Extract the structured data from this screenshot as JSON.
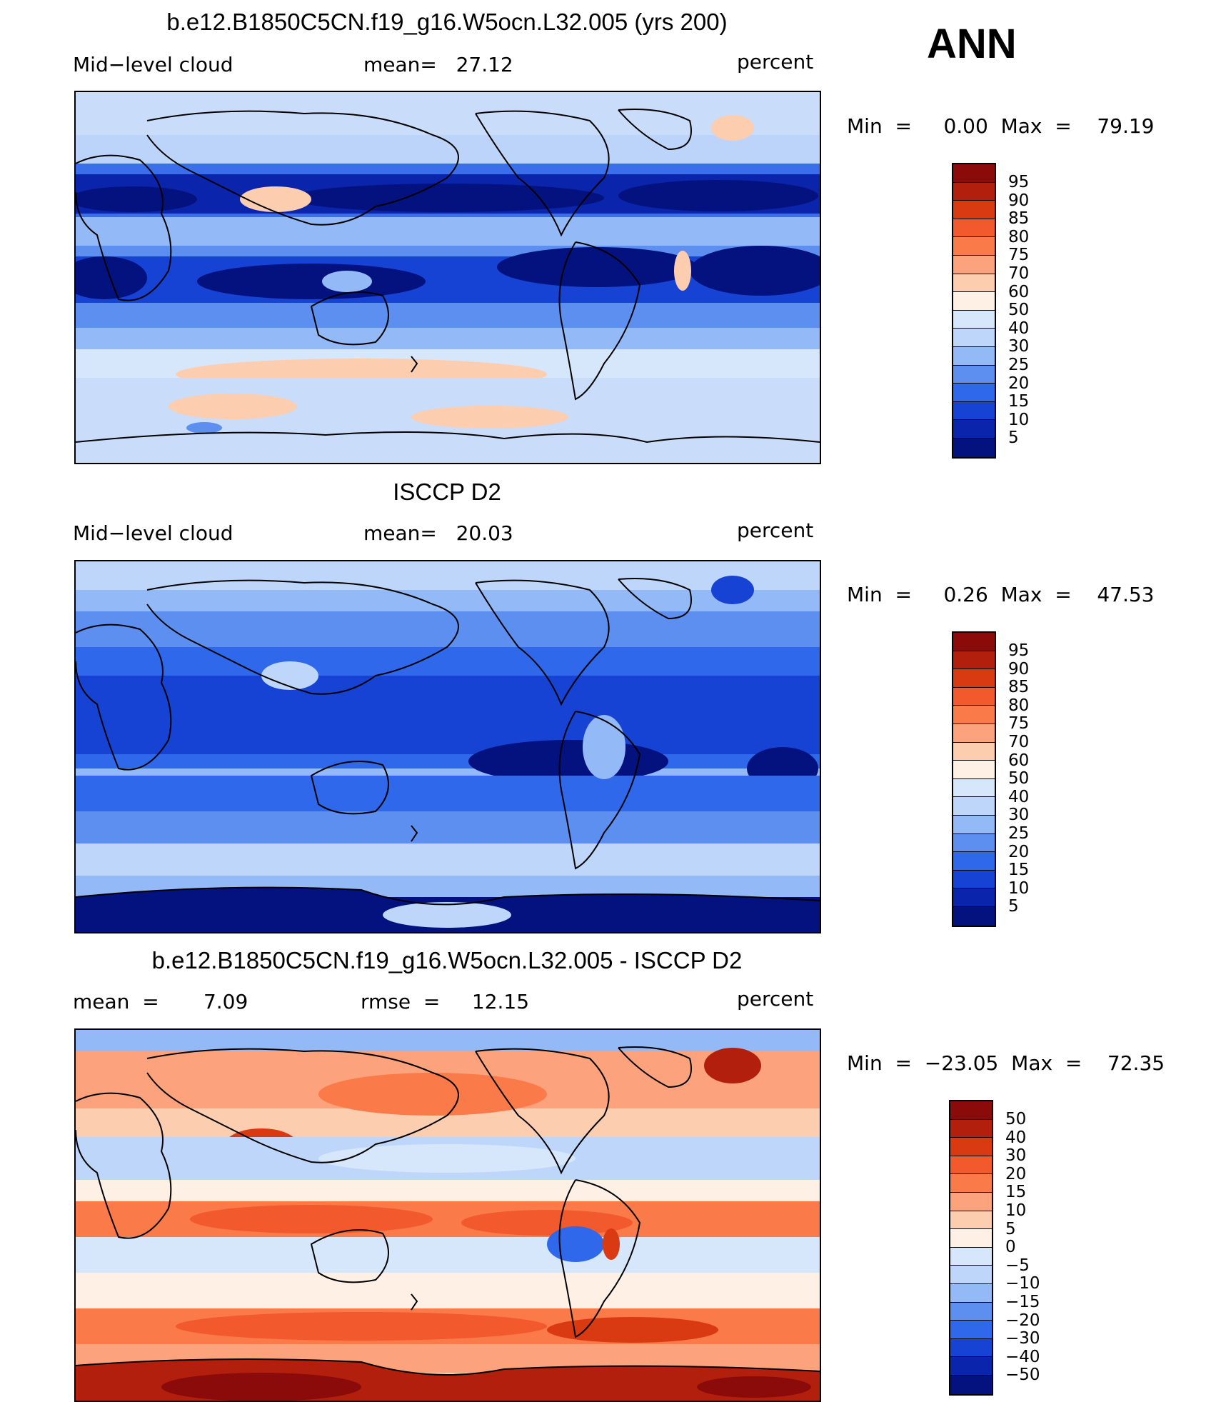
{
  "season": "ANN",
  "panels": [
    {
      "title": "b.e12.B1850C5CN.f19_g16.W5ocn.L32.005 (yrs 200)",
      "left_label": "Mid−level cloud",
      "mid_label": "mean=   27.12",
      "units": "percent",
      "minmax": "Min  =     0.00  Max  =    79.19",
      "colorbar_labels": [
        "95",
        "90",
        "85",
        "80",
        "75",
        "70",
        "60",
        "50",
        "40",
        "30",
        "25",
        "20",
        "15",
        "10",
        "5"
      ],
      "colorbar_colors": [
        "#8b0b0b",
        "#b2200d",
        "#da3a12",
        "#f2592c",
        "#fb7a4a",
        "#fca27c",
        "#fdcdb0",
        "#fef0e4",
        "#d7e7fb",
        "#bed6fa",
        "#93b9f6",
        "#5c8ff0",
        "#2f68ea",
        "#1643d4",
        "#0a25ac",
        "#03127f"
      ]
    },
    {
      "title": "ISCCP D2",
      "left_label": "Mid−level cloud",
      "mid_label": "mean=   20.03",
      "units": "percent",
      "minmax": "Min  =     0.26  Max  =    47.53",
      "colorbar_labels": [
        "95",
        "90",
        "85",
        "80",
        "75",
        "70",
        "60",
        "50",
        "40",
        "30",
        "25",
        "20",
        "15",
        "10",
        "5"
      ],
      "colorbar_colors": [
        "#8b0b0b",
        "#b2200d",
        "#da3a12",
        "#f2592c",
        "#fb7a4a",
        "#fca27c",
        "#fdcdb0",
        "#fef0e4",
        "#d7e7fb",
        "#bed6fa",
        "#93b9f6",
        "#5c8ff0",
        "#2f68ea",
        "#1643d4",
        "#0a25ac",
        "#03127f"
      ]
    },
    {
      "title": "b.e12.B1850C5CN.f19_g16.W5ocn.L32.005 - ISCCP D2",
      "left_label": "mean  =       7.09",
      "mid_label": "rmse  =     12.15",
      "units": "percent",
      "minmax": "Min  =  −23.05  Max  =    72.35",
      "colorbar_labels": [
        "50",
        "40",
        "30",
        "20",
        "15",
        "10",
        "5",
        "0",
        "−5",
        "−10",
        "−15",
        "−20",
        "−30",
        "−40",
        "−50"
      ],
      "colorbar_colors": [
        "#8b0b0b",
        "#b2200d",
        "#da3a12",
        "#f2592c",
        "#fb7a4a",
        "#fca27c",
        "#fdcdb0",
        "#fef0e4",
        "#d7e7fb",
        "#bed6fa",
        "#93b9f6",
        "#5c8ff0",
        "#2f68ea",
        "#1643d4",
        "#0a25ac",
        "#03127f"
      ]
    }
  ]
}
